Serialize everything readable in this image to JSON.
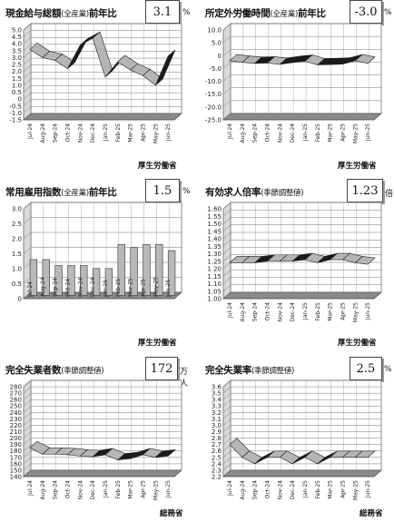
{
  "months": [
    "Jul-24",
    "Aug-24",
    "Sep-24",
    "Oct-24",
    "Nov-24",
    "Dec-24",
    "Jan-25",
    "Feb-25",
    "Mar-25",
    "Apr-25",
    "May-25",
    "Jun-25"
  ],
  "panels": [
    {
      "id": "wages",
      "title": "現金給与総額",
      "title_sub": "(全産業)",
      "title_suffix": "前年比",
      "value": "3.1",
      "unit": "%",
      "source": "厚生労働省"
    },
    {
      "id": "hours",
      "title": "所定外労働時間",
      "title_sub": "(全産業)",
      "title_suffix": "前年比",
      "value": "-3.0",
      "unit": "%",
      "source": "厚生労働省"
    },
    {
      "id": "employment",
      "title": "常用雇用指数",
      "title_sub": "(全産業)",
      "title_suffix": "前年比",
      "value": "1.5",
      "unit": "%",
      "source": "厚生労働省"
    },
    {
      "id": "jobs",
      "title": "有効求人倍率",
      "title_sub": "(季節調整値)",
      "title_suffix": "",
      "value": "1.23",
      "unit": "倍",
      "source": "厚生労働省"
    },
    {
      "id": "unemployed",
      "title": "完全失業者数",
      "title_sub": "(季節調整値)",
      "title_suffix": "",
      "value": "172",
      "unit": "万人",
      "source": "総務省"
    },
    {
      "id": "rate",
      "title": "完全失業率",
      "title_sub": "(季節調整値)",
      "title_suffix": "",
      "value": "2.5",
      "unit": "%",
      "source": "総務省"
    }
  ],
  "chart_data": [
    {
      "type": "line",
      "title": "現金給与総額(全産業)前年比",
      "x": [
        "Jul-24",
        "Aug-24",
        "Sep-24",
        "Oct-24",
        "Nov-24",
        "Dec-24",
        "Jan-25",
        "Feb-25",
        "Mar-25",
        "Apr-25",
        "May-25",
        "Jun-25"
      ],
      "series": [
        {
          "values": [
            3.6,
            3.0,
            2.8,
            2.2,
            3.9,
            4.4,
            1.6,
            2.7,
            2.1,
            1.7,
            1.0,
            3.1
          ]
        }
      ],
      "ylim": [
        -1.5,
        5.0
      ],
      "yticks": [
        "5.0",
        "4.5",
        "4.0",
        "3.5",
        "3.0",
        "2.5",
        "2.0",
        "1.5",
        "1.0",
        "0.5",
        "0",
        "-0.5",
        "-1.0",
        "-1.5"
      ],
      "grid": true
    },
    {
      "type": "line",
      "title": "所定外労働時間(全産業)前年比",
      "x": [
        "Jul-24",
        "Aug-24",
        "Sep-24",
        "Oct-24",
        "Nov-24",
        "Dec-24",
        "Jan-25",
        "Feb-25",
        "Mar-25",
        "Apr-25",
        "May-25",
        "Jun-25"
      ],
      "series": [
        {
          "values": [
            -2.0,
            -2.6,
            -3.0,
            -2.9,
            -3.4,
            -2.7,
            -2.2,
            -3.6,
            -3.5,
            -3.3,
            -2.0,
            -3.0
          ]
        }
      ],
      "ylim": [
        -25.0,
        10.0
      ],
      "yticks": [
        "10.0",
        "5.0",
        "0",
        "-5.0",
        "-10.0",
        "-15.0",
        "-20.0",
        "-25.0"
      ],
      "grid": true
    },
    {
      "type": "bar",
      "title": "常用雇用指数(全産業)前年比",
      "categories": [
        "Jul-24",
        "Aug-24",
        "Sep-24",
        "Oct-24",
        "Nov-24",
        "Dec-24",
        "Jan-25",
        "Feb-25",
        "Mar-25",
        "Apr-25",
        "May-25",
        "Jun-25"
      ],
      "values": [
        1.2,
        1.2,
        1.0,
        1.0,
        1.0,
        0.9,
        0.9,
        1.7,
        1.6,
        1.7,
        1.7,
        1.5
      ],
      "ylim": [
        0.0,
        3.0
      ],
      "yticks": [
        "3.0",
        "2.5",
        "2.0",
        "1.5",
        "1.0",
        "0.5",
        "0"
      ],
      "grid": true
    },
    {
      "type": "line",
      "title": "有効求人倍率(季節調整値)",
      "x": [
        "Jul-24",
        "Aug-24",
        "Sep-24",
        "Oct-24",
        "Nov-24",
        "Dec-24",
        "Jan-25",
        "Feb-25",
        "Mar-25",
        "Apr-25",
        "May-25",
        "Jun-25"
      ],
      "series": [
        {
          "values": [
            1.24,
            1.24,
            1.24,
            1.25,
            1.25,
            1.25,
            1.26,
            1.24,
            1.26,
            1.26,
            1.24,
            1.23
          ]
        }
      ],
      "ylim": [
        1.0,
        1.6
      ],
      "yticks": [
        "1.60",
        "1.55",
        "1.50",
        "1.45",
        "1.40",
        "1.35",
        "1.30",
        "1.25",
        "1.20",
        "1.15",
        "1.10",
        "1.05",
        "1.00"
      ],
      "grid": true
    },
    {
      "type": "line",
      "title": "完全失業者数(季節調整値)",
      "x": [
        "Jul-24",
        "Aug-24",
        "Sep-24",
        "Oct-24",
        "Nov-24",
        "Dec-24",
        "Jan-25",
        "Feb-25",
        "Mar-25",
        "Apr-25",
        "May-25",
        "Jun-25"
      ],
      "series": [
        {
          "values": [
            185,
            175,
            175,
            174,
            172,
            171,
            174,
            166,
            168,
            174,
            170,
            172
          ]
        }
      ],
      "ylim": [
        140,
        280
      ],
      "yticks": [
        "280",
        "270",
        "260",
        "250",
        "240",
        "230",
        "220",
        "210",
        "200",
        "190",
        "180",
        "170",
        "160",
        "150",
        "140"
      ],
      "grid": true
    },
    {
      "type": "line",
      "title": "完全失業率(季節調整値)",
      "x": [
        "Jul-24",
        "Aug-24",
        "Sep-24",
        "Oct-24",
        "Nov-24",
        "Dec-24",
        "Jan-25",
        "Feb-25",
        "Mar-25",
        "Apr-25",
        "May-25",
        "Jun-25"
      ],
      "series": [
        {
          "values": [
            2.7,
            2.5,
            2.4,
            2.5,
            2.5,
            2.4,
            2.5,
            2.4,
            2.5,
            2.5,
            2.5,
            2.5
          ]
        }
      ],
      "ylim": [
        2.2,
        3.6
      ],
      "yticks": [
        "3.6",
        "3.5",
        "3.4",
        "3.3",
        "3.2",
        "3.1",
        "3.0",
        "2.9",
        "2.8",
        "2.7",
        "2.6",
        "2.5",
        "2.4",
        "2.3",
        "2.2"
      ],
      "grid": true
    }
  ]
}
